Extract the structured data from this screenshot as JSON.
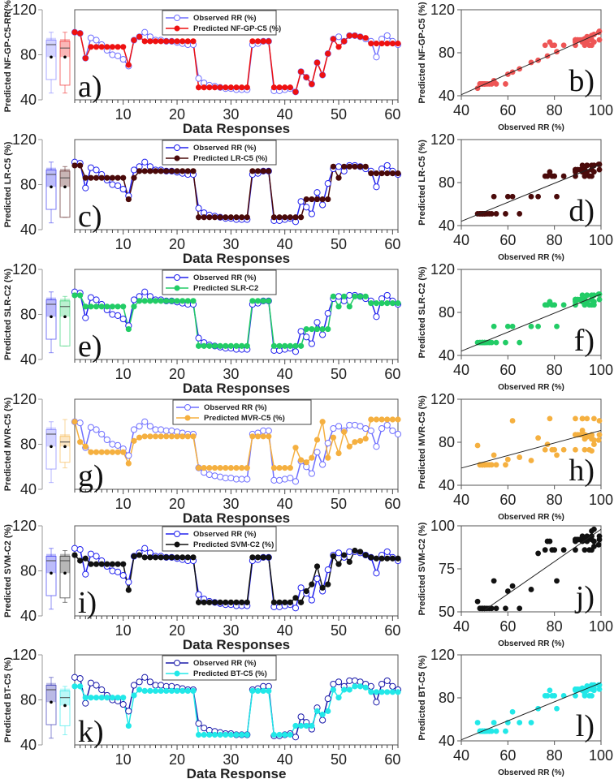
{
  "chart_data": [
    {
      "type": "line",
      "panel_label": "a)",
      "ylabel": "Predicted NF-GP-C5-RR(%)",
      "xlabel": "Data Responses",
      "ylim": [
        40,
        120
      ],
      "yticks": [
        40,
        80,
        120
      ],
      "xlim": [
        1,
        61
      ],
      "xticks": [
        10,
        20,
        30,
        40,
        50,
        60
      ],
      "legend": [
        "Observed RR (%)",
        "Predicted NF-GP-C5 (%)"
      ],
      "pred_color": "#ee1111",
      "obs_color": "#6f6fff",
      "pred": [
        100,
        99,
        77,
        87,
        87,
        87,
        87,
        87,
        87,
        87,
        71,
        93,
        96,
        92,
        92,
        92,
        92,
        92,
        92,
        92,
        92,
        92,
        92,
        51,
        51,
        51,
        51,
        51,
        51,
        51,
        51,
        51,
        51,
        92,
        92,
        92,
        92,
        51,
        51,
        51,
        51,
        47,
        65,
        60,
        54,
        73,
        62,
        81,
        94,
        87,
        92,
        97,
        97,
        96,
        95,
        90,
        90,
        90,
        90,
        90,
        90
      ],
      "box": {
        "obs": [
          46,
          58,
          89,
          93,
          100,
          78
        ],
        "pred": [
          46,
          53,
          86,
          92,
          100,
          78
        ]
      }
    },
    {
      "type": "line",
      "panel_label": "c)",
      "ylabel": "Predicted LR-C5 (%)",
      "xlabel": "Data Responses",
      "ylim": [
        40,
        120
      ],
      "yticks": [
        40,
        80,
        120
      ],
      "xlim": [
        1,
        61
      ],
      "xticks": [
        10,
        20,
        30,
        40,
        50,
        60
      ],
      "legend": [
        "Observed RR (%)",
        "Predicted LR-C5 (%)"
      ],
      "pred_color": "#4a0a0a",
      "obs_color": "#2222ee",
      "pred": [
        97,
        97,
        86,
        86,
        86,
        86,
        86,
        86,
        86,
        86,
        67,
        86,
        92,
        92,
        92,
        92,
        92,
        92,
        92,
        92,
        92,
        92,
        92,
        51,
        51,
        51,
        51,
        51,
        51,
        51,
        51,
        51,
        51,
        92,
        92,
        92,
        92,
        51,
        51,
        51,
        51,
        51,
        51,
        67,
        67,
        67,
        67,
        67,
        96,
        86,
        96,
        96,
        96,
        96,
        96,
        90,
        90,
        90,
        90,
        90,
        90
      ],
      "box": {
        "obs": [
          46,
          58,
          89,
          93,
          100,
          78
        ],
        "pred": [
          51,
          51,
          86,
          92,
          96,
          78
        ]
      }
    },
    {
      "type": "line",
      "panel_label": "e)",
      "ylabel": "Predicted SLR-C2 (%)",
      "xlabel": "Data Responses",
      "ylim": [
        40,
        120
      ],
      "yticks": [
        40,
        80,
        120
      ],
      "xlim": [
        1,
        61
      ],
      "xticks": [
        10,
        20,
        30,
        40,
        50,
        60
      ],
      "legend": [
        "Observed RR (%)",
        "Predicted SLR-C2"
      ],
      "pred_color": "#22cc66",
      "obs_color": "#2222ee",
      "pred": [
        97,
        97,
        87,
        87,
        87,
        87,
        87,
        87,
        87,
        87,
        67,
        87,
        92,
        92,
        92,
        92,
        92,
        92,
        92,
        92,
        92,
        92,
        92,
        52,
        52,
        52,
        52,
        52,
        52,
        52,
        52,
        52,
        52,
        92,
        92,
        92,
        92,
        52,
        52,
        52,
        52,
        52,
        52,
        67,
        67,
        67,
        67,
        67,
        96,
        87,
        96,
        87,
        96,
        96,
        96,
        90,
        90,
        90,
        90,
        90,
        90
      ],
      "box": {
        "obs": [
          46,
          58,
          89,
          93,
          100,
          78
        ],
        "pred": [
          52,
          52,
          87,
          92,
          96,
          78
        ]
      }
    },
    {
      "type": "line",
      "panel_label": "g)",
      "ylabel": "Predicted MVR-C5 (%)",
      "xlabel": "Data Responses",
      "ylim": [
        40,
        120
      ],
      "yticks": [
        40,
        80,
        120
      ],
      "xlim": [
        1,
        61
      ],
      "xticks": [
        10,
        20,
        30,
        40,
        50,
        60
      ],
      "legend": [
        "Observed RR (%)",
        "Predicted MVR-C5 (%)"
      ],
      "pred_color": "#f5b040",
      "obs_color": "#6f6fff",
      "pred": [
        100,
        82,
        78,
        73,
        73,
        73,
        73,
        73,
        73,
        73,
        63,
        83,
        86,
        87,
        87,
        87,
        87,
        87,
        87,
        87,
        87,
        87,
        87,
        59,
        59,
        59,
        59,
        59,
        59,
        59,
        59,
        59,
        59,
        87,
        87,
        87,
        87,
        59,
        59,
        59,
        59,
        77,
        66,
        64,
        68,
        84,
        100,
        68,
        86,
        72,
        91,
        78,
        82,
        83,
        85,
        102,
        102,
        102,
        102,
        102,
        102
      ],
      "box": {
        "obs": [
          46,
          58,
          89,
          93,
          100,
          78
        ],
        "pred": [
          59,
          64,
          82,
          87,
          102,
          78
        ]
      }
    },
    {
      "type": "line",
      "panel_label": "i)",
      "ylabel": "Predicted SVM-C2 (%)",
      "xlabel": "Data Responses",
      "ylim": [
        40,
        120
      ],
      "yticks": [
        40,
        80,
        120
      ],
      "xlim": [
        1,
        61
      ],
      "xticks": [
        10,
        20,
        30,
        40,
        50,
        60
      ],
      "legend": [
        "Observed RR (%)",
        "Predicted SVM-C2 (%)"
      ],
      "pred_color": "#111111",
      "obs_color": "#2222ee",
      "pred": [
        94,
        89,
        91,
        86,
        86,
        86,
        86,
        86,
        86,
        86,
        63,
        93,
        94,
        92,
        92,
        92,
        92,
        92,
        92,
        92,
        92,
        92,
        92,
        52,
        52,
        52,
        52,
        52,
        52,
        52,
        52,
        52,
        52,
        92,
        92,
        92,
        92,
        52,
        52,
        52,
        52,
        56,
        52,
        62,
        68,
        84,
        65,
        68,
        93,
        86,
        94,
        88,
        98,
        97,
        94,
        92,
        91,
        91,
        91,
        91,
        91
      ],
      "box": {
        "obs": [
          46,
          58,
          89,
          93,
          100,
          78
        ],
        "pred": [
          52,
          56,
          89,
          93,
          98,
          78
        ]
      }
    },
    {
      "type": "line",
      "panel_label": "k)",
      "ylabel": "Predicted BT-C5 (%)",
      "xlabel": "Data Response",
      "ylim": [
        40,
        120
      ],
      "yticks": [
        40,
        80,
        120
      ],
      "xlim": [
        1,
        61
      ],
      "xticks": [
        10,
        20,
        30,
        40,
        50,
        60
      ],
      "legend": [
        "Observed RR (%)",
        "Predicted BT-C5 (%)"
      ],
      "pred_color": "#22e8e8",
      "obs_color": "#1a1aaa",
      "pred": [
        92,
        92,
        82,
        82,
        82,
        82,
        82,
        82,
        82,
        82,
        57,
        84,
        89,
        88,
        88,
        88,
        88,
        88,
        88,
        88,
        88,
        88,
        88,
        49,
        49,
        49,
        49,
        49,
        49,
        49,
        49,
        49,
        49,
        88,
        88,
        88,
        88,
        49,
        49,
        49,
        49,
        57,
        57,
        57,
        57,
        70,
        67,
        70,
        89,
        82,
        89,
        89,
        92,
        92,
        91,
        87,
        87,
        87,
        87,
        87,
        87
      ],
      "box": {
        "obs": [
          46,
          58,
          89,
          93,
          100,
          78
        ],
        "pred": [
          49,
          57,
          82,
          88,
          92,
          75
        ]
      }
    },
    {
      "type": "scatter",
      "panel_label": "b)",
      "ylabel": "Predicted NF-GP-C5 (%)",
      "xlabel": "Observed RR (%)",
      "xlim": [
        40,
        100
      ],
      "ylim": [
        40,
        120
      ],
      "xticks": [
        40,
        60,
        80,
        100
      ],
      "yticks": [
        40,
        80,
        120
      ],
      "fit": [
        [
          40,
          41
        ],
        [
          100,
          99
        ]
      ],
      "color": "#ee5555",
      "source": 0
    },
    {
      "type": "scatter",
      "panel_label": "d)",
      "ylabel": "Predicted LR-C5 (%)",
      "xlabel": "Observed RR (%)",
      "xlim": [
        40,
        100
      ],
      "ylim": [
        40,
        120
      ],
      "xticks": [
        40,
        60,
        80,
        100
      ],
      "yticks": [
        40,
        80,
        120
      ],
      "fit": [
        [
          40,
          44
        ],
        [
          100,
          97
        ]
      ],
      "color": "#4a0a0a",
      "source": 1
    },
    {
      "type": "scatter",
      "panel_label": "f)",
      "ylabel": "Predicted SLR-C2 (%)",
      "xlabel": "Observed RR (%)",
      "xlim": [
        40,
        100
      ],
      "ylim": [
        40,
        120
      ],
      "xticks": [
        40,
        60,
        80,
        100
      ],
      "yticks": [
        40,
        80,
        120
      ],
      "fit": [
        [
          40,
          44
        ],
        [
          100,
          97
        ]
      ],
      "color": "#22cc66",
      "source": 2
    },
    {
      "type": "scatter",
      "panel_label": "h)",
      "ylabel": "Predicted MVR-C5 (%)",
      "xlabel": "Observed RR (%)",
      "xlim": [
        40,
        100
      ],
      "ylim": [
        40,
        120
      ],
      "xticks": [
        40,
        60,
        80,
        100
      ],
      "yticks": [
        40,
        80,
        120
      ],
      "fit": [
        [
          40,
          56
        ],
        [
          100,
          91
        ]
      ],
      "color": "#f5b040",
      "source": 3
    },
    {
      "type": "scatter",
      "panel_label": "j)",
      "ylabel": "Predicted SVM-C2 (%)",
      "xlabel": "Observed RR (%)",
      "xlim": [
        40,
        100
      ],
      "ylim": [
        50,
        100
      ],
      "xticks": [
        40,
        60,
        80,
        100
      ],
      "yticks": [
        50,
        75,
        100
      ],
      "fit": [
        [
          50,
          51
        ],
        [
          100,
          98
        ]
      ],
      "color": "#111111",
      "source": 4
    },
    {
      "type": "scatter",
      "panel_label": "l)",
      "ylabel": "Predicted BT-C5 (%)",
      "xlabel": "Observed RR (%)",
      "xlim": [
        40,
        100
      ],
      "ylim": [
        40,
        120
      ],
      "xticks": [
        40,
        60,
        80,
        100
      ],
      "yticks": [
        40,
        80,
        120
      ],
      "fit": [
        [
          40,
          41
        ],
        [
          100,
          94
        ]
      ],
      "color": "#22e8e8",
      "source": 5
    }
  ],
  "observed": [
    100,
    99,
    77,
    95,
    93,
    89,
    84,
    80,
    79,
    76,
    70,
    93,
    96,
    100,
    96,
    93,
    93,
    92,
    92,
    91,
    90,
    89,
    89,
    59,
    55,
    53,
    52,
    51,
    50,
    50,
    49,
    49,
    49,
    89,
    90,
    92,
    92,
    48,
    48,
    49,
    50,
    47,
    65,
    60,
    54,
    73,
    62,
    81,
    94,
    96,
    92,
    97,
    97,
    96,
    94,
    92,
    78,
    94,
    97,
    92,
    89
  ]
}
